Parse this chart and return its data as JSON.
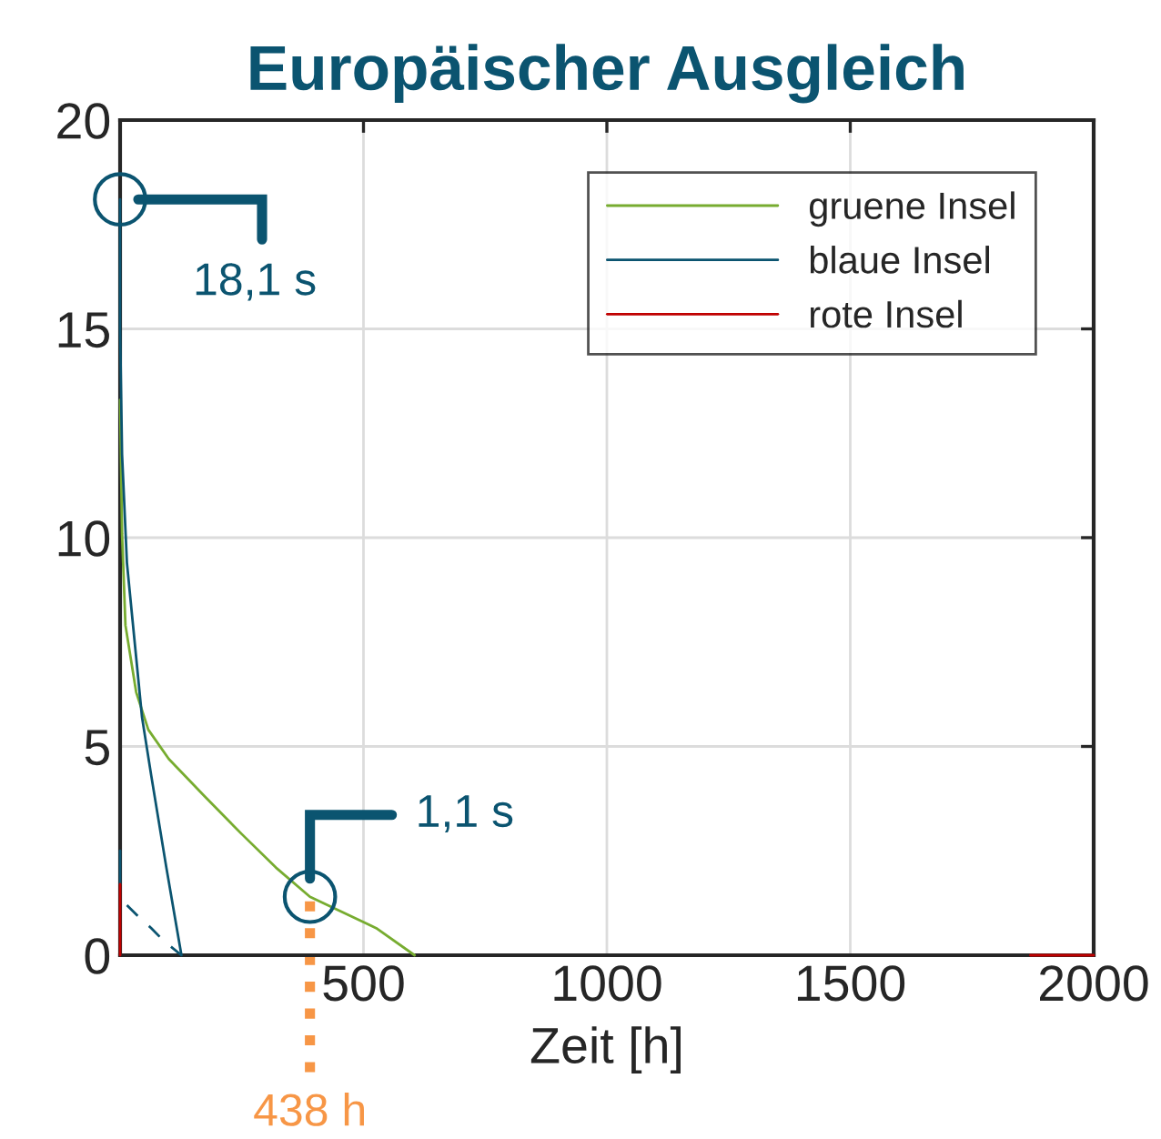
{
  "chart_data": {
    "type": "line",
    "title": "Europäischer Ausgleich",
    "xlabel": "Zeit [h]",
    "xlim": [
      0,
      2000
    ],
    "xticks": [
      500,
      1000,
      1500,
      2000
    ],
    "ylim": [
      0,
      20
    ],
    "yticks": [
      0,
      5,
      10,
      15,
      20
    ],
    "grid": true,
    "legend": "top right",
    "series": [
      {
        "name": "gruene Insel",
        "color": "#77ac30",
        "x": [
          0,
          4,
          11,
          33,
          58,
          100,
          174,
          250,
          320,
          390,
          526,
          605
        ],
        "values": [
          13.3,
          10.1,
          7.9,
          6.3,
          5.4,
          4.7,
          3.8,
          2.9,
          2.1,
          1.4,
          0.65,
          0
        ]
      },
      {
        "name": "blaue Insel",
        "color": "#0b5470",
        "x": [
          0,
          0,
          4,
          14,
          45,
          64,
          95,
          126
        ],
        "values": [
          18.1,
          15,
          12,
          9.4,
          5.7,
          4.3,
          2.1,
          0
        ]
      },
      {
        "color": "#0b5470",
        "x": [
          0,
          0
        ],
        "values": [
          2.5,
          1.7
        ]
      },
      {
        "color": "#0b5470",
        "line_style": "dashed",
        "x": [
          14,
          40,
          64,
          89,
          126
        ],
        "values": [
          1.2,
          0.9,
          0.65,
          0.35,
          0
        ]
      },
      {
        "name": "rote Insel",
        "color": "#c00000",
        "x": [
          0,
          0,
          1000,
          1870,
          2000
        ],
        "values": [
          1.7,
          0,
          null,
          0,
          0
        ]
      }
    ],
    "annotations": [
      {
        "text": "18,1 s",
        "x": 0,
        "y": 18.1
      },
      {
        "text": "1,1 s",
        "x": 390,
        "y": 1.4
      }
    ],
    "ref_lines": [
      {
        "axis": "x",
        "value": 390,
        "label": "438 h",
        "color": "#f79646",
        "line_style": "dotted"
      }
    ]
  }
}
